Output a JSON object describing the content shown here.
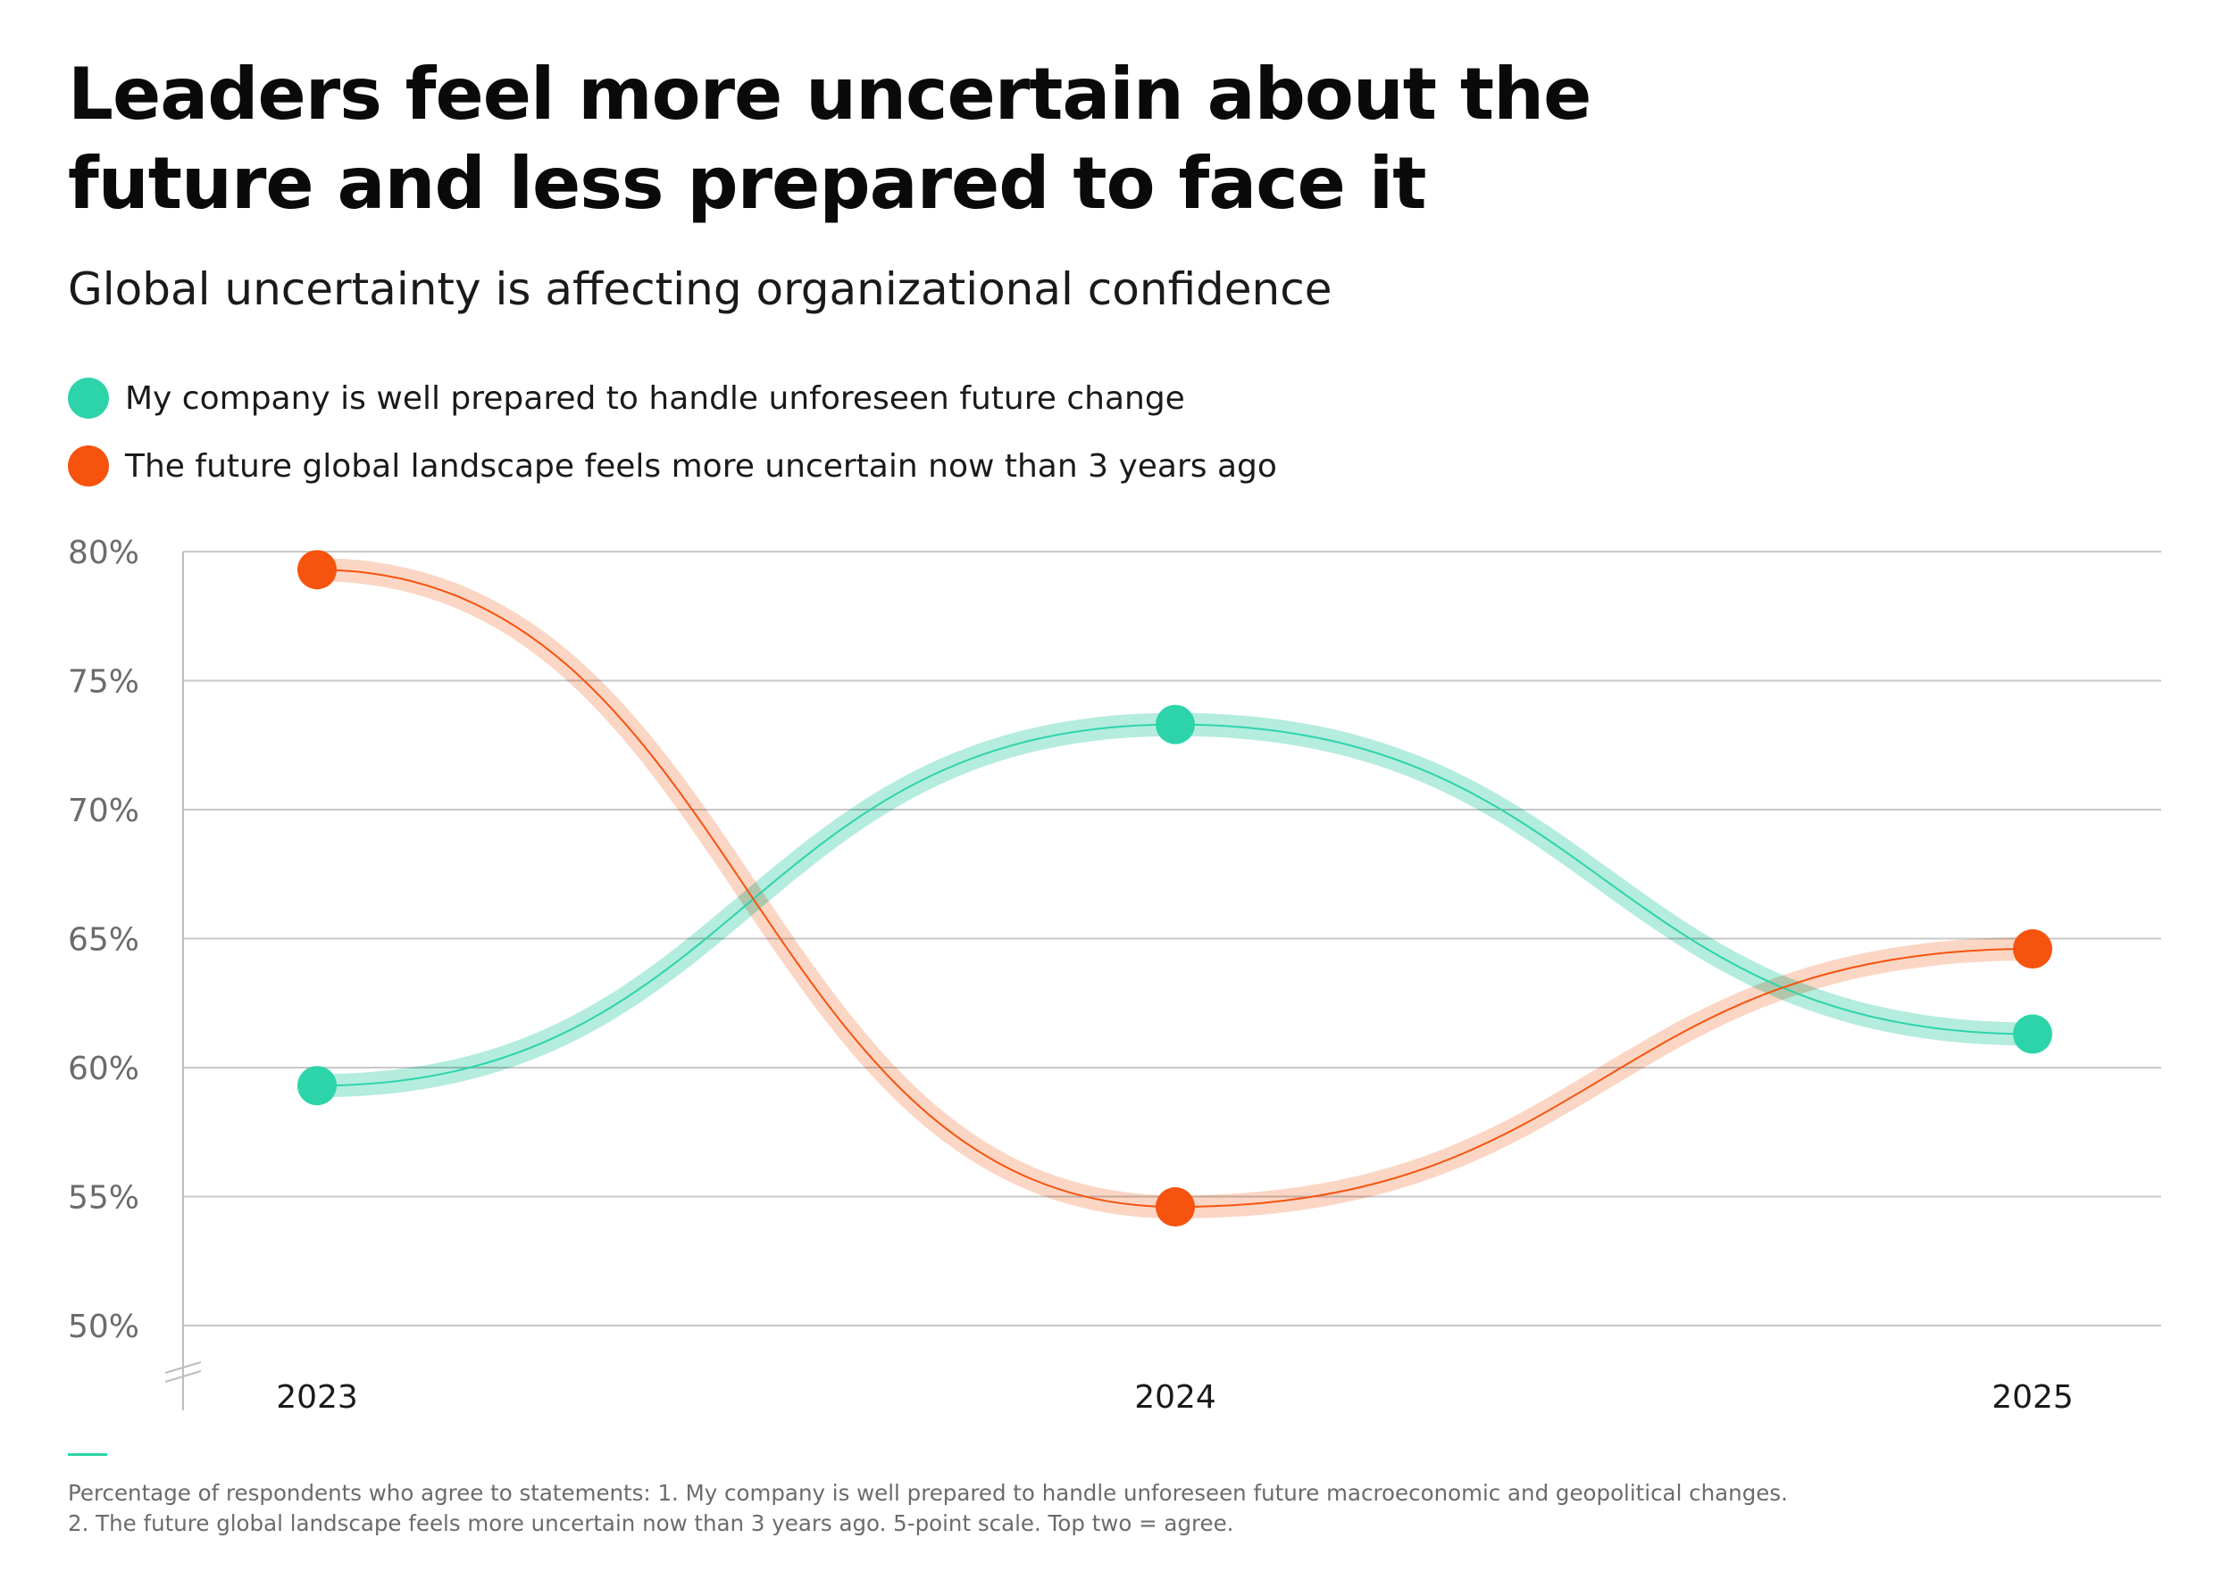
{
  "header": {
    "title": "Leaders feel more uncertain about the future and less prepared to face it",
    "subtitle": "Global uncertainty is affecting organizational confidence"
  },
  "colors": {
    "teal": "#2dd4aa",
    "teal_band": "#aeeadb",
    "orange": "#f6530f",
    "orange_band": "#fbd3c0",
    "grid": "#c8c8c8",
    "axis": "#bdbdbd"
  },
  "chart_data": {
    "type": "line",
    "x": [
      "2023",
      "2024",
      "2025"
    ],
    "y_ticks": [
      "80%",
      "75%",
      "70%",
      "65%",
      "60%",
      "55%",
      "50%"
    ],
    "ylim": [
      50,
      80
    ],
    "grid": true,
    "axis_break": true,
    "series": [
      {
        "name": "My company is well prepared to handle unforeseen future change",
        "color": "#2dd4aa",
        "band_color": "#aeeadb",
        "values": [
          59.3,
          73.3,
          61.3
        ]
      },
      {
        "name": "The future global landscape feels more uncertain now than 3 years ago",
        "color": "#f6530f",
        "band_color": "#fbd3c0",
        "values": [
          79.3,
          54.6,
          64.6
        ]
      }
    ]
  },
  "footer": {
    "note_line1": "Percentage of respondents who agree to statements: 1. My company is well prepared to handle unforeseen future macroeconomic and geopolitical changes.",
    "note_line2": "2. The future global landscape feels more uncertain now than 3 years ago. 5-point scale. Top two = agree."
  }
}
